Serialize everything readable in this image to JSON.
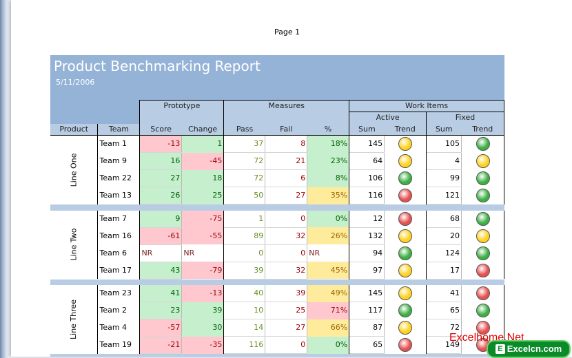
{
  "page_label": "Page 1",
  "report": {
    "title": "Product Benchmarking Report",
    "date": "5/11/2006"
  },
  "headers": {
    "product": "Product",
    "team": "Team",
    "prototype": "Prototype",
    "measures": "Measures",
    "work_items": "Work Items",
    "active": "Active",
    "fixed": "Fixed",
    "score": "Score",
    "change": "Change",
    "pass": "Pass",
    "fail": "Fail",
    "percent": "%",
    "sum": "Sum",
    "trend": "Trend"
  },
  "colors": {
    "header_blue": "#95b3d7",
    "band_blue": "#b8cce4",
    "good_fill": "#c6efce",
    "bad_fill": "#ffc7ce",
    "neutral_fill": "#ffeb9c",
    "trend_green": "#3cb043",
    "trend_yellow": "#ffd21f",
    "trend_red": "#e85050"
  },
  "groups": [
    {
      "product": "Line One",
      "rows": [
        {
          "team": "Team 1",
          "score": "-13",
          "change": "1",
          "pass": "37",
          "fail": "8",
          "pct": "18%",
          "active_sum": "145",
          "active_trend": "yellow",
          "fixed_sum": "105",
          "fixed_trend": "green"
        },
        {
          "team": "Team 9",
          "score": "16",
          "change": "-45",
          "pass": "72",
          "fail": "21",
          "pct": "23%",
          "active_sum": "64",
          "active_trend": "yellow",
          "fixed_sum": "4",
          "fixed_trend": "yellow"
        },
        {
          "team": "Team 22",
          "score": "27",
          "change": "18",
          "pass": "72",
          "fail": "6",
          "pct": "8%",
          "active_sum": "106",
          "active_trend": "green",
          "fixed_sum": "99",
          "fixed_trend": "green"
        },
        {
          "team": "Team 13",
          "score": "26",
          "change": "25",
          "pass": "50",
          "fail": "27",
          "pct": "35%",
          "active_sum": "116",
          "active_trend": "red",
          "fixed_sum": "121",
          "fixed_trend": "green"
        }
      ]
    },
    {
      "product": "Line Two",
      "rows": [
        {
          "team": "Team 7",
          "score": "9",
          "change": "-75",
          "pass": "1",
          "fail": "0",
          "pct": "0%",
          "active_sum": "12",
          "active_trend": "red",
          "fixed_sum": "68",
          "fixed_trend": "green"
        },
        {
          "team": "Team 16",
          "score": "-61",
          "change": "-55",
          "pass": "89",
          "fail": "32",
          "pct": "26%",
          "active_sum": "132",
          "active_trend": "yellow",
          "fixed_sum": "20",
          "fixed_trend": "yellow"
        },
        {
          "team": "Team 6",
          "score": "NR",
          "change": "NR",
          "pass": "0",
          "fail": "0",
          "pct": "NR",
          "active_sum": "94",
          "active_trend": "green",
          "fixed_sum": "124",
          "fixed_trend": "green"
        },
        {
          "team": "Team 17",
          "score": "43",
          "change": "-79",
          "pass": "39",
          "fail": "32",
          "pct": "45%",
          "active_sum": "97",
          "active_trend": "yellow",
          "fixed_sum": "17",
          "fixed_trend": "red"
        }
      ]
    },
    {
      "product": "Line Three",
      "rows": [
        {
          "team": "Team 23",
          "score": "41",
          "change": "-13",
          "pass": "40",
          "fail": "39",
          "pct": "49%",
          "active_sum": "145",
          "active_trend": "yellow",
          "fixed_sum": "41",
          "fixed_trend": "red"
        },
        {
          "team": "Team 2",
          "score": "23",
          "change": "39",
          "pass": "10",
          "fail": "25",
          "pct": "71%",
          "active_sum": "117",
          "active_trend": "green",
          "fixed_sum": "65",
          "fixed_trend": "green"
        },
        {
          "team": "Team 4",
          "score": "-57",
          "change": "30",
          "pass": "14",
          "fail": "27",
          "pct": "66%",
          "active_sum": "87",
          "active_trend": "yellow",
          "fixed_sum": "72",
          "fixed_trend": "red"
        },
        {
          "team": "Team 19",
          "score": "-21",
          "change": "-35",
          "pass": "116",
          "fail": "0",
          "pct": "0%",
          "active_sum": "65",
          "active_trend": "red",
          "fixed_sum": "149",
          "fixed_trend": "red"
        }
      ]
    }
  ],
  "watermark": {
    "text": "Excelhome.Net",
    "badge_icon": "E",
    "badge_text": "Excelcn.com"
  }
}
